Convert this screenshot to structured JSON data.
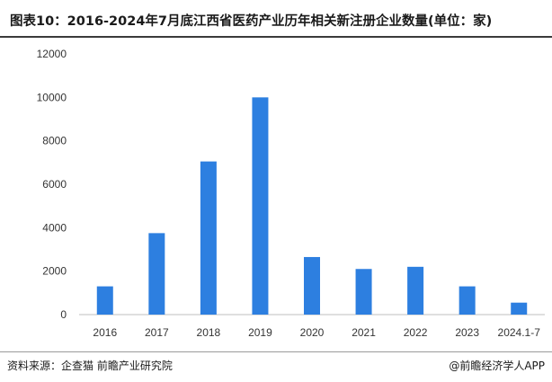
{
  "title": "图表10：2016-2024年7月底江西省医药产业历年相关新注册企业数量(单位：家)",
  "footer": {
    "source": "资料来源：企查猫 前瞻产业研究院",
    "credit": "@前瞻经济学人APP"
  },
  "colors": {
    "bar": "#2d7fe0",
    "axis": "#bfbfbf"
  },
  "chart_data": {
    "type": "bar",
    "categories": [
      "2016",
      "2017",
      "2018",
      "2019",
      "2020",
      "2021",
      "2022",
      "2023",
      "2024.1-7"
    ],
    "values": [
      1300,
      3750,
      7050,
      10000,
      2650,
      2100,
      2200,
      1300,
      550
    ],
    "ylim": [
      0,
      12000
    ],
    "yticks": [
      0,
      2000,
      4000,
      6000,
      8000,
      10000,
      12000
    ],
    "grid": false,
    "legend": "none"
  }
}
